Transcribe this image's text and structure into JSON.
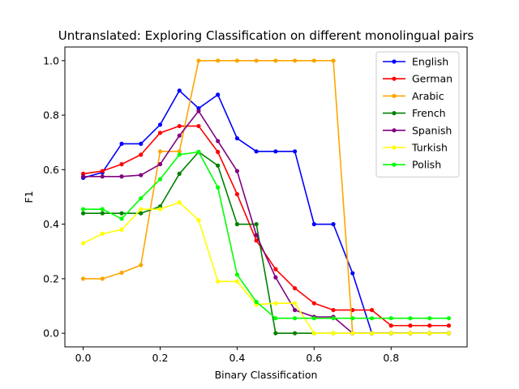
{
  "chart_data": {
    "type": "line",
    "title": "Untranslated: Exploring Classification on different monolingual pairs",
    "xlabel": "Binary Classification",
    "ylabel": "F1",
    "xlim": [
      -0.0475,
      0.9975
    ],
    "ylim": [
      -0.05,
      1.05
    ],
    "xticks": [
      0.0,
      0.2,
      0.4,
      0.6,
      0.8
    ],
    "xtick_labels": [
      "0.0",
      "0.2",
      "0.4",
      "0.6",
      "0.8"
    ],
    "yticks": [
      0.0,
      0.2,
      0.4,
      0.6,
      0.8,
      1.0
    ],
    "ytick_labels": [
      "0.0",
      "0.2",
      "0.4",
      "0.6",
      "0.8",
      "1.0"
    ],
    "grid": false,
    "legend_position": "top-right",
    "x": [
      0.0,
      0.05,
      0.1,
      0.15,
      0.2,
      0.25,
      0.3,
      0.35,
      0.4,
      0.45,
      0.5,
      0.55,
      0.6,
      0.65,
      0.7,
      0.75,
      0.8,
      0.85,
      0.9,
      0.95
    ],
    "series": [
      {
        "name": "English",
        "color": "#0000ff",
        "values": [
          0.57,
          0.59,
          0.695,
          0.695,
          0.765,
          0.89,
          0.825,
          0.875,
          0.715,
          0.667,
          0.667,
          0.667,
          0.4,
          0.4,
          0.22,
          0.0,
          0.0,
          0.0,
          0.0,
          0.0
        ]
      },
      {
        "name": "German",
        "color": "#ff0000",
        "values": [
          0.585,
          0.595,
          0.62,
          0.655,
          0.735,
          0.76,
          0.76,
          0.665,
          0.51,
          0.34,
          0.235,
          0.165,
          0.11,
          0.085,
          0.085,
          0.085,
          0.028,
          0.028,
          0.028,
          0.028
        ]
      },
      {
        "name": "Arabic",
        "color": "#ffa500",
        "values": [
          0.2,
          0.2,
          0.222,
          0.25,
          0.667,
          0.667,
          1.0,
          1.0,
          1.0,
          1.0,
          1.0,
          1.0,
          1.0,
          1.0,
          0.0,
          0.0,
          0.0,
          0.0,
          0.0,
          0.0
        ]
      },
      {
        "name": "French",
        "color": "#008000",
        "values": [
          0.44,
          0.44,
          0.44,
          0.44,
          0.465,
          0.585,
          0.665,
          0.615,
          0.4,
          0.4,
          0.0,
          0.0,
          0.0,
          0.0,
          0.0,
          0.0,
          0.0,
          0.0,
          0.0,
          0.0
        ]
      },
      {
        "name": "Spanish",
        "color": "#800080",
        "values": [
          0.575,
          0.575,
          0.575,
          0.58,
          0.62,
          0.725,
          0.815,
          0.705,
          0.595,
          0.36,
          0.205,
          0.085,
          0.06,
          0.06,
          0.0,
          0.0,
          0.0,
          0.0,
          0.0,
          0.0
        ]
      },
      {
        "name": "Turkish",
        "color": "#ffff00",
        "values": [
          0.33,
          0.365,
          0.38,
          0.455,
          0.455,
          0.48,
          0.415,
          0.19,
          0.19,
          0.105,
          0.11,
          0.11,
          0.0,
          0.0,
          0.0,
          0.0,
          0.0,
          0.0,
          0.0,
          0.0
        ]
      },
      {
        "name": "Polish",
        "color": "#00ff00",
        "values": [
          0.455,
          0.455,
          0.42,
          0.495,
          0.565,
          0.655,
          0.665,
          0.535,
          0.215,
          0.115,
          0.055,
          0.055,
          0.055,
          0.055,
          0.055,
          0.055,
          0.055,
          0.055,
          0.055,
          0.055
        ]
      }
    ]
  }
}
